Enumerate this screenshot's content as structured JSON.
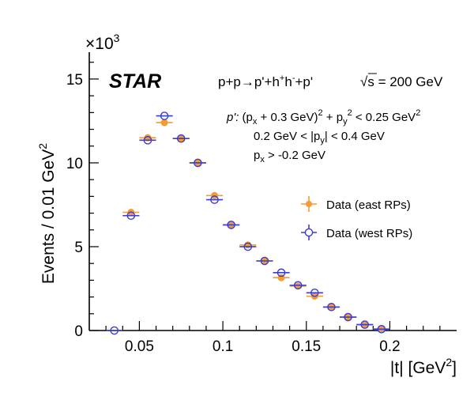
{
  "chart_data": {
    "type": "scatter",
    "experiment": "STAR",
    "process_parts": {
      "base": "p+p→p'+h",
      "sup1": "+",
      "mid": "h",
      "sup2": "-",
      "tail": "+p'"
    },
    "energy_parts": {
      "sqrt": "√",
      "s": "s",
      "rest": " = 200 GeV"
    },
    "cuts": [
      {
        "id": "cut1",
        "parts": [
          {
            "t": "p': ",
            "style": "italic"
          },
          {
            "t": "(p"
          },
          {
            "t": "x",
            "style": "sub"
          },
          {
            "t": " + 0.3 GeV)"
          },
          {
            "t": "2",
            "style": "sup"
          },
          {
            "t": " + p"
          },
          {
            "t": "y",
            "style": "sub"
          },
          {
            "t": "2",
            "style": "sup"
          },
          {
            "t": " < 0.25 GeV"
          },
          {
            "t": "2",
            "style": "sup"
          }
        ]
      },
      {
        "id": "cut2",
        "parts": [
          {
            "t": "0.2 GeV < |p"
          },
          {
            "t": "y",
            "style": "sub"
          },
          {
            "t": "| < 0.4 GeV"
          }
        ]
      },
      {
        "id": "cut3",
        "parts": [
          {
            "t": "p"
          },
          {
            "t": "x",
            "style": "sub"
          },
          {
            "t": " > -0.2 GeV"
          }
        ]
      }
    ],
    "xlabel": {
      "main": "|t|  [GeV",
      "sup": "2",
      "end": "]"
    },
    "ylabel": {
      "main": "Events / 0.01 GeV",
      "sup": "2"
    },
    "y_multiplier": {
      "base": "×10",
      "exp": "3"
    },
    "xlim": [
      0.02,
      0.24
    ],
    "ylim": [
      0,
      16.6
    ],
    "x_ticks": [
      {
        "value": 0.05,
        "label": "0.05"
      },
      {
        "value": 0.1,
        "label": "0.1"
      },
      {
        "value": 0.15,
        "label": "0.15"
      },
      {
        "value": 0.2,
        "label": "0.2"
      }
    ],
    "y_ticks": [
      {
        "value": 0,
        "label": "0"
      },
      {
        "value": 5,
        "label": "5"
      },
      {
        "value": 10,
        "label": "10"
      },
      {
        "value": 15,
        "label": "15"
      }
    ],
    "x_bin_half_width": 0.005,
    "legend": {
      "placement": "right"
    },
    "series": [
      {
        "name": "Data (east RPs)",
        "color": "#f39c33",
        "marker": "filled",
        "x": [
          0.045,
          0.055,
          0.065,
          0.075,
          0.085,
          0.095,
          0.105,
          0.115,
          0.125,
          0.135,
          0.145,
          0.155,
          0.165,
          0.175,
          0.185,
          0.195
        ],
        "y": [
          7.05,
          11.5,
          12.4,
          11.45,
          10.0,
          8.05,
          6.3,
          5.1,
          4.15,
          3.15,
          2.65,
          2.05,
          1.4,
          0.8,
          0.35,
          0.1
        ]
      },
      {
        "name": "Data (west RPs)",
        "color": "#3d3dcc",
        "marker": "open",
        "x": [
          0.035,
          0.045,
          0.055,
          0.065,
          0.075,
          0.085,
          0.095,
          0.105,
          0.115,
          0.125,
          0.135,
          0.145,
          0.155,
          0.165,
          0.175,
          0.185,
          0.195
        ],
        "y": [
          0.0,
          6.85,
          11.35,
          12.8,
          11.45,
          10.0,
          7.8,
          6.3,
          5.0,
          4.15,
          3.45,
          2.7,
          2.25,
          1.4,
          0.8,
          0.35,
          0.08
        ]
      }
    ]
  }
}
